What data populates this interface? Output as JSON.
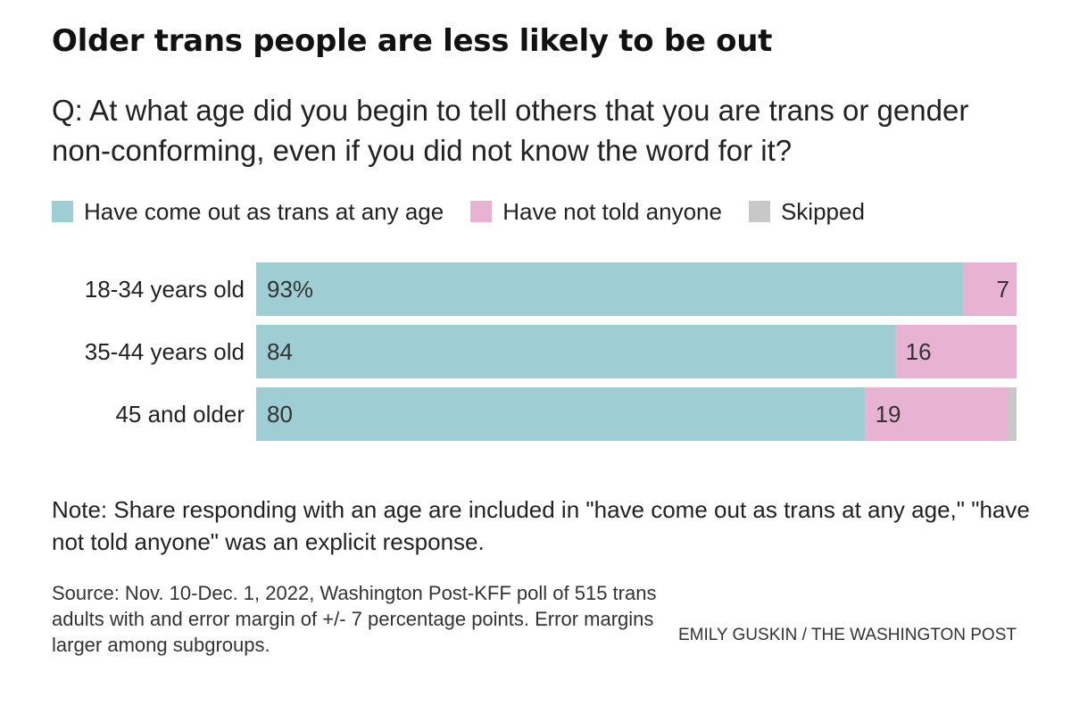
{
  "header": {
    "title": "Older trans people are less likely to be out",
    "subtitle": "Q: At what age did you begin to tell others that you are trans or gender non-conforming, even if you did not know the word for it?"
  },
  "colors": {
    "out": "#9ecdd3",
    "not_told": "#e8b3d2",
    "skipped": "#c8c8c8"
  },
  "chart_data": {
    "type": "bar",
    "orientation": "horizontal",
    "stacked": true,
    "categories": [
      "18-34 years old",
      "35-44 years old",
      "45 and older"
    ],
    "series": [
      {
        "name": "Have come out as trans at any age",
        "values": [
          93,
          84,
          80
        ],
        "labels": [
          "93%",
          "84",
          "80"
        ]
      },
      {
        "name": "Have not told anyone",
        "values": [
          7,
          16,
          19
        ],
        "labels": [
          "7",
          "16",
          "19"
        ]
      },
      {
        "name": "Skipped",
        "values": [
          0,
          0,
          1
        ],
        "labels": [
          "",
          "",
          ""
        ]
      }
    ],
    "xlim": [
      0,
      100
    ],
    "legend": "top",
    "grid": false
  },
  "footer": {
    "note": "Note: Share responding with an age are included in \"have come out as trans at any age,\" \"have not told anyone\" was an explicit response.",
    "source": "Source: Nov. 10-Dec. 1, 2022, Washington Post-KFF poll of 515 trans adults with and error margin of +/- 7 percentage points. Error margins larger among subgroups.",
    "credit": "EMILY GUSKIN / THE WASHINGTON POST"
  }
}
